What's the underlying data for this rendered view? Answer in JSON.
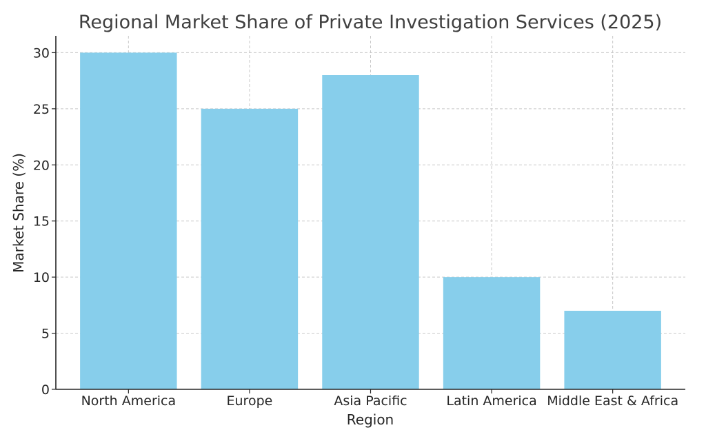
{
  "chart_data": {
    "type": "bar",
    "title": "Regional Market Share of Private Investigation Services (2025)",
    "xlabel": "Region",
    "ylabel": "Market Share (%)",
    "categories": [
      "North America",
      "Europe",
      "Asia Pacific",
      "Latin America",
      "Middle East & Africa"
    ],
    "values": [
      30,
      25,
      28,
      10,
      7
    ],
    "ylim": [
      0,
      31.5
    ],
    "yticks": [
      "0",
      "5",
      "10",
      "15",
      "20",
      "25",
      "30"
    ],
    "grid": true,
    "bar_color": "#87CEEB"
  }
}
